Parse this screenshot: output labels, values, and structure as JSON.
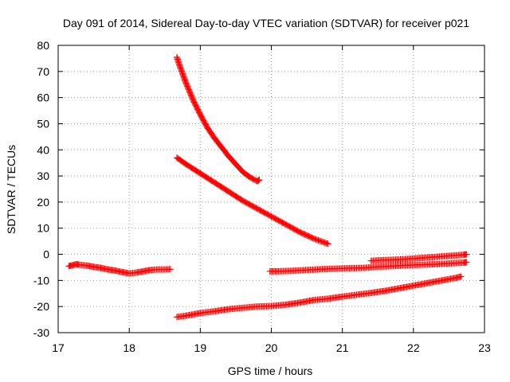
{
  "chart_data": {
    "type": "scatter",
    "title": "Day 091 of 2014, Sidereal Day-to-day VTEC variation (SDTVAR) for receiver p021",
    "xlabel": "GPS time / hours",
    "ylabel": "SDTVAR / TECUs",
    "xlim": [
      17,
      23
    ],
    "ylim": [
      -30,
      80
    ],
    "xticks": [
      "17",
      "18",
      "19",
      "20",
      "21",
      "22",
      "23"
    ],
    "yticks": [
      "-30",
      "-20",
      "-10",
      "0",
      "10",
      "20",
      "30",
      "40",
      "50",
      "60",
      "70",
      "80"
    ],
    "grid": true,
    "marker": "plus",
    "color": "#ff0000",
    "series": [
      {
        "x": [
          17.15,
          17.2,
          17.25,
          17.3,
          17.4,
          17.5,
          17.6,
          17.7,
          17.8,
          17.9,
          18.0,
          18.1,
          18.2,
          18.3,
          18.4,
          18.5,
          18.58
        ],
        "y": [
          -4.5,
          -4.2,
          -3.8,
          -4.0,
          -4.3,
          -4.8,
          -5.2,
          -5.8,
          -6.2,
          -6.8,
          -7.3,
          -7.0,
          -6.5,
          -6.0,
          -5.8,
          -5.8,
          -5.7
        ]
      },
      {
        "x": [
          18.67,
          18.7,
          18.8,
          18.9,
          19.0,
          19.1,
          19.2,
          19.3,
          19.4,
          19.5,
          19.6,
          19.7,
          19.8,
          19.83
        ],
        "y": [
          75.5,
          73.0,
          65.5,
          59.0,
          53.5,
          48.5,
          44.5,
          41.0,
          37.5,
          34.5,
          31.5,
          29.5,
          28.0,
          28.5
        ]
      },
      {
        "x": [
          18.67,
          18.8,
          19.0,
          19.2,
          19.4,
          19.6,
          19.8,
          20.0,
          20.2,
          20.4,
          20.6,
          20.8
        ],
        "y": [
          37.0,
          34.5,
          31.0,
          27.5,
          24.0,
          20.5,
          17.5,
          14.5,
          11.5,
          8.5,
          6.0,
          4.0
        ]
      },
      {
        "x": [
          18.67,
          18.8,
          19.0,
          19.2,
          19.4,
          19.6,
          19.8,
          20.0,
          20.2,
          20.4,
          20.6,
          20.8,
          21.0,
          21.2,
          21.4,
          21.6,
          21.8,
          22.0,
          22.2,
          22.4,
          22.6,
          22.67
        ],
        "y": [
          -24.0,
          -23.5,
          -22.5,
          -21.8,
          -21.0,
          -20.5,
          -20.0,
          -19.8,
          -19.3,
          -18.5,
          -17.5,
          -17.0,
          -16.2,
          -15.5,
          -14.8,
          -14.0,
          -13.0,
          -12.0,
          -11.0,
          -10.0,
          -9.0,
          -8.5
        ]
      },
      {
        "x": [
          19.98,
          20.1,
          20.3,
          20.5,
          20.7,
          20.9,
          21.1,
          21.3,
          21.5,
          21.7,
          21.9,
          22.1,
          22.3,
          22.5,
          22.7,
          22.75
        ],
        "y": [
          -6.5,
          -6.5,
          -6.3,
          -6.0,
          -5.7,
          -5.5,
          -5.3,
          -5.2,
          -4.8,
          -4.5,
          -4.2,
          -4.0,
          -3.8,
          -3.5,
          -3.2,
          -3.0
        ]
      },
      {
        "x": [
          21.4,
          21.5,
          21.6,
          21.7,
          21.8,
          21.9,
          22.0,
          22.1,
          22.2,
          22.3,
          22.4,
          22.5,
          22.6,
          22.7,
          22.75
        ],
        "y": [
          -2.5,
          -2.3,
          -2.2,
          -2.1,
          -2.0,
          -1.8,
          -1.6,
          -1.4,
          -1.2,
          -1.0,
          -0.8,
          -0.6,
          -0.4,
          -0.2,
          0.0
        ]
      }
    ]
  }
}
